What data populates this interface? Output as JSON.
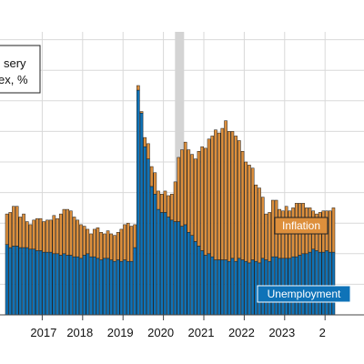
{
  "chart_data": {
    "type": "bar",
    "stacked": true,
    "title": "",
    "legend_box": {
      "line1": "sery",
      "line2": "ex, %"
    },
    "xlabel": "",
    "ylabel": "",
    "x_ticks": [
      "2017",
      "2018",
      "2019",
      "2020",
      "2021",
      "2022",
      "2023",
      "2"
    ],
    "shaded_period": [
      "2020-02",
      "2020-04"
    ],
    "grid": true,
    "series": [
      {
        "name": "Unemployment",
        "color": "#0f73b8",
        "values": [
          4.6,
          4.4,
          4.5,
          4.5,
          4.4,
          4.4,
          4.4,
          4.3,
          4.3,
          4.2,
          4.2,
          4.1,
          4.1,
          4.1,
          4.0,
          4.0,
          3.9,
          4.0,
          3.9,
          3.9,
          3.8,
          3.8,
          3.7,
          3.9,
          4.0,
          3.8,
          3.8,
          3.7,
          3.6,
          3.7,
          3.7,
          3.6,
          3.5,
          3.6,
          3.5,
          3.6,
          3.5,
          3.5,
          4.4,
          14.7,
          13.2,
          11.0,
          10.2,
          8.4,
          7.9,
          6.9,
          6.7,
          6.7,
          6.4,
          6.2,
          6.1,
          6.1,
          5.8,
          5.9,
          5.4,
          5.2,
          4.8,
          4.5,
          4.2,
          3.9,
          4.0,
          3.8,
          3.6,
          3.6,
          3.6,
          3.6,
          3.5,
          3.7,
          3.5,
          3.7,
          3.6,
          3.5,
          3.4,
          3.6,
          3.5,
          3.4,
          3.7,
          3.6,
          3.5,
          3.8,
          3.8,
          3.7,
          3.7,
          3.7,
          3.7,
          3.8,
          3.8,
          3.9,
          4.0,
          4.0,
          4.1,
          4.3,
          4.2,
          4.1,
          4.1,
          4.2,
          4.1,
          4.1
        ]
      },
      {
        "name": "Inflation",
        "color": "#dd8f3c",
        "values": [
          2.0,
          2.3,
          2.6,
          2.6,
          2.0,
          2.2,
          1.7,
          1.6,
          1.9,
          2.1,
          2.1,
          2.0,
          2.1,
          2.1,
          2.5,
          2.3,
          2.7,
          2.9,
          3.0,
          2.9,
          2.6,
          2.4,
          2.2,
          1.9,
          1.6,
          1.5,
          1.8,
          2.0,
          1.8,
          1.6,
          1.8,
          1.7,
          1.7,
          1.8,
          2.1,
          2.3,
          2.5,
          2.3,
          1.5,
          0.3,
          0.1,
          0.6,
          1.0,
          1.3,
          1.4,
          1.2,
          1.2,
          1.4,
          1.4,
          1.7,
          2.6,
          4.2,
          5.0,
          5.4,
          5.4,
          5.3,
          5.4,
          6.2,
          6.8,
          7.0,
          7.5,
          7.9,
          8.5,
          8.3,
          8.6,
          9.1,
          8.5,
          8.3,
          8.2,
          7.7,
          7.1,
          6.5,
          6.4,
          6.0,
          5.0,
          4.9,
          4.0,
          3.0,
          3.2,
          3.7,
          3.7,
          3.2,
          3.1,
          3.4,
          3.1,
          3.2,
          3.5,
          3.4,
          3.3,
          3.0,
          2.9,
          2.5,
          2.4,
          2.6,
          2.7,
          2.6,
          2.7,
          2.9
        ]
      }
    ],
    "series_labels": {
      "inflation": "Inflation",
      "unemployment": "Unemployment"
    }
  }
}
